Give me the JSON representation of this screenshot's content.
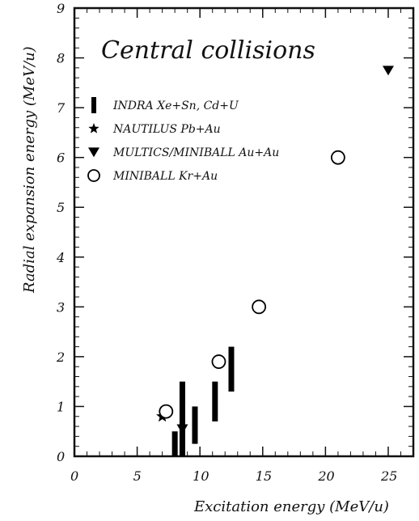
{
  "chart_data": {
    "type": "scatter",
    "title": "Central collisions",
    "xlabel": "Excitation energy (MeV/u)",
    "ylabel": "Radial expansion energy (MeV/u)",
    "xlim": [
      0,
      27
    ],
    "ylim": [
      0,
      9
    ],
    "xticks": [
      0,
      5,
      10,
      15,
      20,
      25
    ],
    "yticks": [
      0,
      1,
      2,
      3,
      4,
      5,
      6,
      7,
      8,
      9
    ],
    "grid": false,
    "legend_position": "upper-left",
    "series": [
      {
        "name": "INDRA Xe+Sn, Cd+U",
        "marker": "bar",
        "points": [
          {
            "x": 8.0,
            "y_low": 0.0,
            "y_high": 0.5
          },
          {
            "x": 8.6,
            "y_low": 0.0,
            "y_high": 1.5
          },
          {
            "x": 9.6,
            "y_low": 0.25,
            "y_high": 1.0
          },
          {
            "x": 11.2,
            "y_low": 0.7,
            "y_high": 1.5
          },
          {
            "x": 12.5,
            "y_low": 1.3,
            "y_high": 2.2
          }
        ]
      },
      {
        "name": "NAUTILUS Pb+Au",
        "marker": "star",
        "points": [
          {
            "x": 7.0,
            "y": 0.8
          }
        ]
      },
      {
        "name": "MULTICS/MINIBALL Au+Au",
        "marker": "triangle-down",
        "points": [
          {
            "x": 8.6,
            "y": 0.55
          },
          {
            "x": 25.0,
            "y": 7.75
          }
        ]
      },
      {
        "name": "MINIBALL Kr+Au",
        "marker": "circle",
        "points": [
          {
            "x": 7.3,
            "y": 0.9
          },
          {
            "x": 11.5,
            "y": 1.9
          },
          {
            "x": 14.7,
            "y": 3.0
          },
          {
            "x": 21.0,
            "y": 6.0
          }
        ]
      }
    ]
  }
}
